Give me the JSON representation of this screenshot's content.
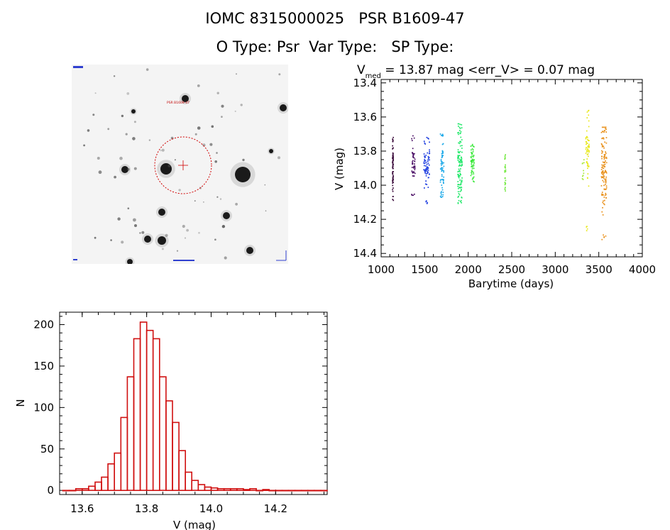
{
  "header": {
    "line1": "IOMC 8315000025   PSR B1609-47",
    "line2": "O Type: Psr  Var Type:   SP Type:"
  },
  "sky_image": {
    "label_top": "PSR B1609-47",
    "frame_note": "finder chart"
  },
  "chart_data": [
    {
      "type": "scatter",
      "title_main": "V",
      "title_sub": "med",
      "title_rest": " = 13.87 mag <err_V> = 0.07 mag",
      "xlabel": "Barytime (days)",
      "ylabel": "V (mag)",
      "xlim": [
        1000,
        4000
      ],
      "ylim": [
        14.42,
        13.38
      ],
      "xticks": [
        1000,
        1500,
        2000,
        2500,
        3000,
        3500,
        4000
      ],
      "yticks": [
        13.4,
        13.6,
        13.8,
        14.0,
        14.2,
        14.4
      ],
      "ytick_labels": [
        "13.4",
        "13.6",
        "13.8",
        "14.0",
        "14.2",
        "14.4"
      ],
      "series": [
        {
          "name": "g1",
          "color": "#3a0a3a",
          "x": [
            1130,
            1140
          ],
          "y_range": [
            13.72,
            14.09
          ],
          "core": [
            13.8,
            13.95
          ],
          "n": 70
        },
        {
          "name": "g2",
          "color": "#4b1066",
          "x": [
            1350,
            1390
          ],
          "y_range": [
            13.71,
            14.07
          ],
          "core": [
            13.82,
            13.92
          ],
          "n": 50
        },
        {
          "name": "g3",
          "color": "#1a3adf",
          "x": [
            1490,
            1560
          ],
          "y_range": [
            13.72,
            14.11
          ],
          "core": [
            13.83,
            13.93
          ],
          "n": 70
        },
        {
          "name": "g4",
          "color": "#1aa8e8",
          "x": [
            1680,
            1720
          ],
          "y_range": [
            13.7,
            14.07
          ],
          "core": [
            13.8,
            13.98
          ],
          "n": 70
        },
        {
          "name": "g5",
          "color": "#22e86a",
          "x": [
            1880,
            1930
          ],
          "y_range": [
            13.64,
            14.11
          ],
          "core": [
            13.78,
            13.99
          ],
          "n": 120
        },
        {
          "name": "g6",
          "color": "#3ae83a",
          "x": [
            2030,
            2070
          ],
          "y_range": [
            13.75,
            13.98
          ],
          "core": [
            13.8,
            13.92
          ],
          "n": 60
        },
        {
          "name": "g7",
          "color": "#6ee83a",
          "x": [
            2420,
            2430
          ],
          "y_range": [
            13.82,
            14.04
          ],
          "core": [
            13.86,
            13.98
          ],
          "n": 25
        },
        {
          "name": "g8",
          "color": "#a8e83a",
          "x": [
            3310,
            3330
          ],
          "y_range": [
            13.85,
            13.97
          ],
          "core": [
            13.87,
            13.93
          ],
          "n": 10
        },
        {
          "name": "g9",
          "color": "#e8e81a",
          "x": [
            3350,
            3390
          ],
          "y_range": [
            13.56,
            14.27
          ],
          "core": [
            13.72,
            13.86
          ],
          "n": 60
        },
        {
          "name": "g10",
          "color": "#e8901a",
          "x": [
            3530,
            3590
          ],
          "y_range": [
            13.66,
            14.32
          ],
          "core": [
            13.78,
            14.05
          ],
          "n": 130
        }
      ]
    },
    {
      "type": "bar",
      "xlabel": "V (mag)",
      "ylabel": "N",
      "xlim": [
        13.53,
        14.36
      ],
      "ylim": [
        -5,
        215
      ],
      "xticks": [
        13.6,
        13.8,
        14.0,
        14.2
      ],
      "xtick_labels": [
        "13.6",
        "13.8",
        "14.0",
        "14.2"
      ],
      "yticks": [
        0,
        50,
        100,
        150,
        200
      ],
      "ytick_labels": [
        "0",
        "50",
        "100",
        "150",
        "200"
      ],
      "bin_start": 13.54,
      "bin_width": 0.02,
      "color": "#d01010",
      "values": [
        0,
        0,
        2,
        2,
        5,
        10,
        16,
        32,
        45,
        88,
        137,
        183,
        203,
        193,
        183,
        137,
        108,
        82,
        48,
        22,
        12,
        7,
        4,
        3,
        2,
        2,
        2,
        2,
        1,
        2,
        0,
        1,
        0,
        0,
        0,
        0,
        0,
        0,
        0,
        0,
        0,
        0,
        0
      ]
    }
  ]
}
